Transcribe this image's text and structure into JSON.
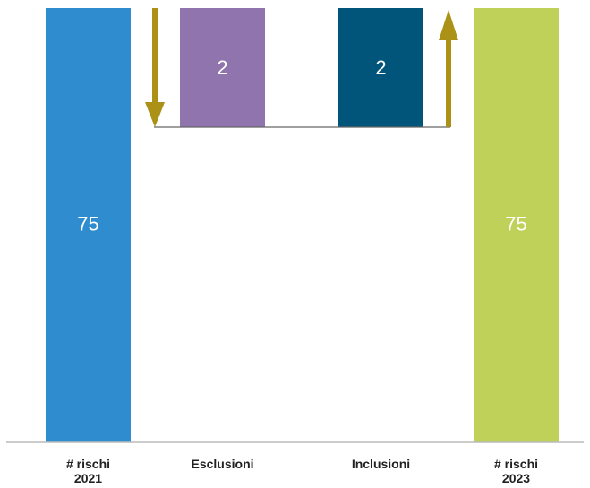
{
  "chart_data": {
    "type": "bar",
    "subtype": "waterfall",
    "categories": [
      "# rischi\n2021",
      "Esclusioni",
      "Inclusioni",
      "# rischi\n2023"
    ],
    "steps": [
      {
        "category": "# rischi\n2021",
        "kind": "total",
        "value": 75,
        "label": "75",
        "color": "#2e8ccf"
      },
      {
        "category": "Esclusioni",
        "kind": "decrease",
        "value": -2,
        "label": "2",
        "color": "#8f74ad"
      },
      {
        "category": "Inclusioni",
        "kind": "increase",
        "value": 2,
        "label": "2",
        "color": "#02557a"
      },
      {
        "category": "# rischi\n2023",
        "kind": "total",
        "value": 75,
        "label": "75",
        "color": "#c0d159"
      }
    ],
    "ylim": [
      0,
      75
    ],
    "grid": false,
    "legend": "none",
    "colors": {
      "arrow": "#ab9115",
      "connector": "#666666",
      "baseline": "#bbbbbb",
      "label_on_bar": "#ffffff",
      "category_text": "#222222"
    }
  }
}
